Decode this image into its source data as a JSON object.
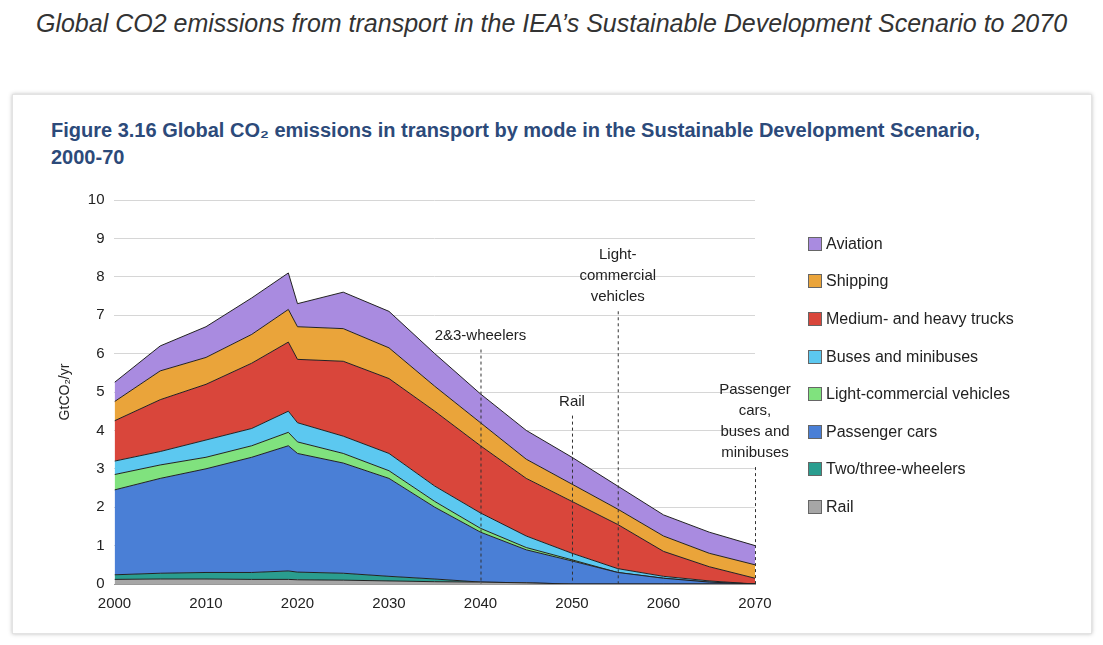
{
  "header": {
    "title": "Global CO2 emissions from transport in the IEA’s Sustainable Development Scenario to 2070"
  },
  "chart_data": {
    "type": "area",
    "stacked": true,
    "title": "Figure 3.16 Global CO₂ emissions in transport by mode in the Sustainable Development Scenario, 2000-70",
    "y_label": "GtCO₂/yr",
    "x": [
      2000,
      2005,
      2010,
      2015,
      2019,
      2020,
      2025,
      2030,
      2035,
      2040,
      2045,
      2050,
      2055,
      2060,
      2065,
      2070
    ],
    "xlim": [
      2000,
      2070
    ],
    "xticks": [
      2000,
      2010,
      2020,
      2030,
      2040,
      2050,
      2060,
      2070
    ],
    "ylim": [
      0,
      10
    ],
    "yticks": [
      0,
      1,
      2,
      3,
      4,
      5,
      6,
      7,
      8,
      9,
      10
    ],
    "grid": true,
    "legend": "right",
    "annotations": [
      {
        "x": 2040,
        "label": [
          "2&3-wheelers"
        ]
      },
      {
        "x": 2050,
        "label": [
          "Rail"
        ]
      },
      {
        "x": 2055,
        "label": [
          "Light-",
          "commercial",
          "vehicles"
        ]
      },
      {
        "x": 2070,
        "label": [
          "Passenger",
          "cars,",
          "buses and",
          "minibuses"
        ]
      }
    ],
    "series": [
      {
        "name": "Aviation",
        "color": "#a98be0",
        "values": [
          0.5,
          0.65,
          0.8,
          0.95,
          0.95,
          0.6,
          0.95,
          0.95,
          0.85,
          0.75,
          0.75,
          0.7,
          0.6,
          0.55,
          0.55,
          0.5
        ]
      },
      {
        "name": "Shipping",
        "color": "#eaa43a",
        "values": [
          0.5,
          0.75,
          0.7,
          0.75,
          0.85,
          0.85,
          0.85,
          0.8,
          0.65,
          0.6,
          0.5,
          0.45,
          0.4,
          0.4,
          0.35,
          0.35
        ]
      },
      {
        "name": "Medium- and heavy trucks",
        "color": "#d9463b",
        "values": [
          1.05,
          1.35,
          1.45,
          1.7,
          1.8,
          1.65,
          1.95,
          1.95,
          1.95,
          1.75,
          1.5,
          1.35,
          1.15,
          0.65,
          0.37,
          0.15
        ]
      },
      {
        "name": "Buses and minibuses",
        "color": "#5cc8f0",
        "values": [
          0.35,
          0.35,
          0.45,
          0.45,
          0.55,
          0.5,
          0.45,
          0.45,
          0.4,
          0.4,
          0.3,
          0.17,
          0.1,
          0.05,
          0.03,
          0
        ]
      },
      {
        "name": "Light-commercial vehicles",
        "color": "#80e27e",
        "values": [
          0.4,
          0.35,
          0.3,
          0.3,
          0.35,
          0.3,
          0.25,
          0.2,
          0.15,
          0.1,
          0.06,
          0.03,
          0,
          0,
          0,
          0
        ]
      },
      {
        "name": "Passenger cars",
        "color": "#4a7fd6",
        "values": [
          2.21,
          2.47,
          2.7,
          3.0,
          3.26,
          3.09,
          2.87,
          2.55,
          1.87,
          1.3,
          0.86,
          0.6,
          0.3,
          0.15,
          0.05,
          0
        ]
      },
      {
        "name": "Two/three-wheelers",
        "color": "#2a9d8f",
        "values": [
          0.12,
          0.15,
          0.17,
          0.18,
          0.22,
          0.2,
          0.18,
          0.12,
          0.07,
          0,
          0,
          0,
          0,
          0,
          0,
          0
        ]
      },
      {
        "name": "Rail",
        "color": "#a6a6a6",
        "values": [
          0.12,
          0.13,
          0.13,
          0.12,
          0.12,
          0.11,
          0.1,
          0.08,
          0.06,
          0.05,
          0.03,
          0,
          0,
          0,
          0,
          0
        ]
      }
    ]
  }
}
